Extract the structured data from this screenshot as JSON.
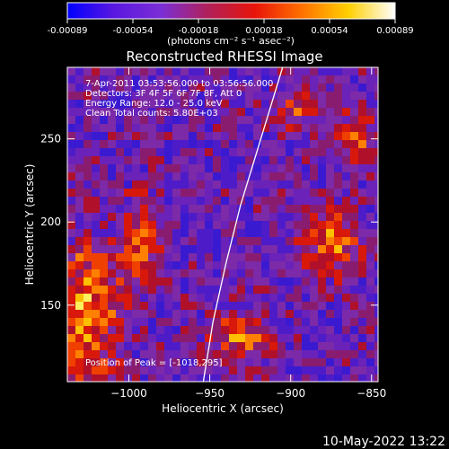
{
  "colorbar": {
    "ticks": [
      "-0.00089",
      "-0.00054",
      "-0.00018",
      "0.00018",
      "0.00054",
      "0.00089"
    ],
    "unit_label": "(photons cm⁻² s⁻¹ asec⁻²)",
    "colormap": [
      "#0000ff",
      "#5a17e0",
      "#7b2fd6",
      "#b0205a",
      "#e8140a",
      "#ff7000",
      "#ffd000",
      "#ffffff"
    ]
  },
  "chart_data": {
    "type": "heatmap",
    "title": "Reconstructed RHESSI Image",
    "xlabel": "Heliocentric X (arcsec)",
    "ylabel": "Heliocentric Y (arcsec)",
    "xlim": [
      -1038,
      -846
    ],
    "ylim": [
      104,
      293
    ],
    "x_ticks": [
      -1000,
      -950,
      -900,
      -850
    ],
    "y_ticks": [
      150,
      200,
      250
    ],
    "x_tick_labels": [
      "−1000",
      "−950",
      "−900",
      "−850"
    ],
    "y_tick_labels": [
      "150",
      "200",
      "250"
    ],
    "limb_curve": [
      [
        -954,
        104
      ],
      [
        -948,
        140
      ],
      [
        -940,
        175
      ],
      [
        -931,
        210
      ],
      [
        -920,
        245
      ],
      [
        -905,
        293
      ]
    ],
    "info_lines": [
      "7-Apr-2011 03:53:56.000 to 03:56:56.000",
      "Detectors: 3F 4F 5F 6F 7F 8F, Att 0",
      "Energy Range: 12.0 - 25.0 keV",
      "Clean    Total counts: 5.80E+03"
    ],
    "peak_label": "Position of Peak = [-1018,295]"
  },
  "footer": {
    "timestamp": "10-May-2022 13:22"
  }
}
